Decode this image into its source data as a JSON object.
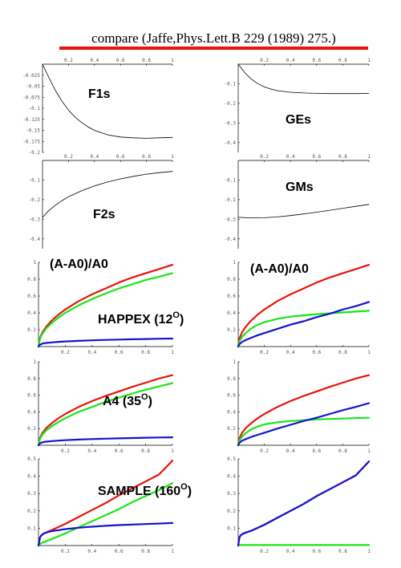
{
  "header": {
    "title": "compare (Jaffe,Phys.Lett.B 229 (1989) 275.)",
    "underline_color": "#e8140a"
  },
  "chart_data": [
    {
      "id": "F1s",
      "type": "line",
      "label": "F1s",
      "label_sup": "",
      "xlim": [
        0,
        1
      ],
      "ylim": [
        -0.2,
        0
      ],
      "xticks": [
        "0.2",
        "0.4",
        "0.6",
        "0.8",
        "1"
      ],
      "yticks": [
        "-0.025",
        "-0.05",
        "-0.075",
        "-0.1",
        "-0.125",
        "-0.15",
        "-0.175",
        "-0.2"
      ],
      "series": [
        {
          "color": "#000000",
          "x": [
            0,
            0.05,
            0.1,
            0.15,
            0.2,
            0.25,
            0.3,
            0.35,
            0.4,
            0.5,
            0.6,
            0.7,
            0.8,
            0.9,
            1.0
          ],
          "y": [
            0,
            -0.031,
            -0.06,
            -0.084,
            -0.104,
            -0.12,
            -0.132,
            -0.142,
            -0.15,
            -0.16,
            -0.165,
            -0.167,
            -0.168,
            -0.167,
            -0.166
          ]
        }
      ]
    },
    {
      "id": "GEs",
      "type": "line",
      "label": "GEs",
      "label_sup": "",
      "xlim": [
        0,
        1
      ],
      "ylim": [
        -0.45,
        0
      ],
      "xticks": [
        "0.2",
        "0.4",
        "0.6",
        "0.8",
        "1"
      ],
      "yticks": [
        "-0.1",
        "-0.2",
        "-0.3",
        "-0.4"
      ],
      "series": [
        {
          "color": "#000000",
          "x": [
            0,
            0.05,
            0.1,
            0.15,
            0.2,
            0.25,
            0.3,
            0.4,
            0.5,
            0.6,
            0.7,
            0.8,
            0.9,
            1.0
          ],
          "y": [
            0,
            -0.043,
            -0.076,
            -0.099,
            -0.116,
            -0.127,
            -0.135,
            -0.143,
            -0.147,
            -0.149,
            -0.15,
            -0.15,
            -0.15,
            -0.149
          ]
        }
      ]
    },
    {
      "id": "F2s",
      "type": "line",
      "label": "F2s",
      "label_sup": "",
      "xlim": [
        0,
        1
      ],
      "ylim": [
        -0.45,
        0
      ],
      "xticks": [
        "0.2",
        "0.4",
        "0.6",
        "0.8",
        "1"
      ],
      "yticks": [
        "-0.1",
        "-0.2",
        "-0.3",
        "-0.4"
      ],
      "series": [
        {
          "color": "#000000",
          "x": [
            0,
            0.05,
            0.1,
            0.15,
            0.2,
            0.3,
            0.4,
            0.5,
            0.6,
            0.7,
            0.8,
            0.9,
            1.0
          ],
          "y": [
            -0.29,
            -0.255,
            -0.228,
            -0.205,
            -0.185,
            -0.155,
            -0.13,
            -0.11,
            -0.094,
            -0.081,
            -0.07,
            -0.062,
            -0.056
          ]
        }
      ]
    },
    {
      "id": "GMs",
      "type": "line",
      "label": "GMs",
      "label_sup": "",
      "xlim": [
        0,
        1
      ],
      "ylim": [
        -0.45,
        0
      ],
      "xticks": [
        "0.2",
        "0.4",
        "0.6",
        "0.8",
        "1"
      ],
      "yticks": [
        "-0.1",
        "-0.2",
        "-0.3",
        "-0.4"
      ],
      "series": [
        {
          "color": "#000000",
          "x": [
            0,
            0.1,
            0.2,
            0.3,
            0.4,
            0.5,
            0.6,
            0.7,
            0.8,
            0.9,
            1.0
          ],
          "y": [
            -0.29,
            -0.293,
            -0.292,
            -0.288,
            -0.281,
            -0.273,
            -0.264,
            -0.254,
            -0.244,
            -0.234,
            -0.224
          ]
        }
      ]
    },
    {
      "id": "HAPPEX-L",
      "type": "line",
      "label": "HAPPEX (12",
      "label_sup": "O",
      "annotation": "(A-A0)/A0",
      "xlim": [
        0,
        1
      ],
      "ylim": [
        0,
        1
      ],
      "xticks": [
        "0.2",
        "0.4",
        "0.6",
        "0.8",
        "1"
      ],
      "yticks": [
        "0.2",
        "0.4",
        "0.6",
        "0.8",
        "1"
      ],
      "series": [
        {
          "color": "#e8140a",
          "x": [
            0,
            0.01,
            0.03,
            0.06,
            0.1,
            0.15,
            0.2,
            0.3,
            0.4,
            0.5,
            0.6,
            0.7,
            0.8,
            0.9,
            1.0
          ],
          "y": [
            0,
            0.098,
            0.17,
            0.24,
            0.31,
            0.38,
            0.44,
            0.54,
            0.62,
            0.69,
            0.76,
            0.82,
            0.87,
            0.92,
            0.97
          ]
        },
        {
          "color": "#19e619",
          "x": [
            0,
            0.01,
            0.03,
            0.06,
            0.1,
            0.15,
            0.2,
            0.3,
            0.4,
            0.5,
            0.6,
            0.7,
            0.8,
            0.9,
            1.0
          ],
          "y": [
            0,
            0.089,
            0.154,
            0.22,
            0.28,
            0.345,
            0.4,
            0.49,
            0.565,
            0.63,
            0.69,
            0.74,
            0.79,
            0.83,
            0.87
          ]
        },
        {
          "color": "#1414d2",
          "x": [
            0,
            0.01,
            0.03,
            0.05,
            0.1,
            0.15,
            0.2,
            0.3,
            0.4,
            0.5,
            0.6,
            0.7,
            0.8,
            0.9,
            1.0
          ],
          "y": [
            0,
            0.022,
            0.036,
            0.042,
            0.05,
            0.056,
            0.061,
            0.068,
            0.074,
            0.079,
            0.083,
            0.087,
            0.09,
            0.093,
            0.095
          ]
        }
      ]
    },
    {
      "id": "HAPPEX-R",
      "type": "line",
      "label": "",
      "label_sup": "",
      "annotation": "(A-A0)/A0",
      "xlim": [
        0,
        1
      ],
      "ylim": [
        0,
        1
      ],
      "xticks": [
        "0.2",
        "0.4",
        "0.6",
        "0.8",
        "1"
      ],
      "yticks": [
        "0.2",
        "0.4",
        "0.6",
        "0.8",
        "1"
      ],
      "series": [
        {
          "color": "#e8140a",
          "x": [
            0,
            0.01,
            0.03,
            0.06,
            0.1,
            0.15,
            0.2,
            0.3,
            0.4,
            0.5,
            0.6,
            0.7,
            0.8,
            0.9,
            1.0
          ],
          "y": [
            0,
            0.098,
            0.17,
            0.24,
            0.31,
            0.38,
            0.44,
            0.54,
            0.62,
            0.69,
            0.76,
            0.82,
            0.87,
            0.92,
            0.97
          ]
        },
        {
          "color": "#19e619",
          "x": [
            0,
            0.01,
            0.03,
            0.06,
            0.1,
            0.15,
            0.2,
            0.3,
            0.4,
            0.5,
            0.6,
            0.7,
            0.8,
            0.9,
            1.0
          ],
          "y": [
            0,
            0.065,
            0.115,
            0.165,
            0.215,
            0.26,
            0.29,
            0.33,
            0.355,
            0.37,
            0.385,
            0.395,
            0.405,
            0.415,
            0.425
          ]
        },
        {
          "color": "#1414d2",
          "x": [
            0,
            0.01,
            0.03,
            0.06,
            0.1,
            0.15,
            0.2,
            0.3,
            0.4,
            0.5,
            0.6,
            0.7,
            0.8,
            0.9,
            1.0
          ],
          "y": [
            0,
            0.03,
            0.055,
            0.08,
            0.105,
            0.135,
            0.16,
            0.21,
            0.26,
            0.3,
            0.35,
            0.39,
            0.44,
            0.48,
            0.53
          ]
        }
      ]
    },
    {
      "id": "A4-L",
      "type": "line",
      "label": "A4 (35",
      "label_sup": "O",
      "annotation": "",
      "xlim": [
        0,
        1
      ],
      "ylim": [
        0,
        1
      ],
      "xticks": [
        "0.2",
        "0.4",
        "0.6",
        "0.8",
        "1"
      ],
      "yticks": [
        "0.2",
        "0.4",
        "0.6",
        "0.8",
        "1"
      ],
      "series": [
        {
          "color": "#e8140a",
          "x": [
            0,
            0.01,
            0.03,
            0.06,
            0.1,
            0.15,
            0.2,
            0.3,
            0.4,
            0.5,
            0.6,
            0.7,
            0.8,
            0.9,
            1.0
          ],
          "y": [
            0,
            0.085,
            0.15,
            0.21,
            0.265,
            0.325,
            0.375,
            0.46,
            0.53,
            0.59,
            0.645,
            0.7,
            0.75,
            0.8,
            0.84
          ]
        },
        {
          "color": "#19e619",
          "x": [
            0,
            0.01,
            0.03,
            0.06,
            0.1,
            0.15,
            0.2,
            0.3,
            0.4,
            0.5,
            0.6,
            0.7,
            0.8,
            0.9,
            1.0
          ],
          "y": [
            0,
            0.075,
            0.13,
            0.18,
            0.23,
            0.28,
            0.325,
            0.4,
            0.46,
            0.52,
            0.57,
            0.62,
            0.665,
            0.705,
            0.745
          ]
        },
        {
          "color": "#1414d2",
          "x": [
            0,
            0.01,
            0.03,
            0.05,
            0.1,
            0.15,
            0.2,
            0.3,
            0.4,
            0.5,
            0.6,
            0.7,
            0.8,
            0.9,
            1.0
          ],
          "y": [
            0,
            0.022,
            0.036,
            0.042,
            0.05,
            0.056,
            0.061,
            0.068,
            0.074,
            0.079,
            0.083,
            0.087,
            0.09,
            0.093,
            0.095
          ]
        }
      ]
    },
    {
      "id": "A4-R",
      "type": "line",
      "label": "",
      "label_sup": "",
      "annotation": "",
      "xlim": [
        0,
        1
      ],
      "ylim": [
        0,
        1
      ],
      "xticks": [
        "0.2",
        "0.4",
        "0.6",
        "0.8",
        "1"
      ],
      "yticks": [
        "0.2",
        "0.4",
        "0.6",
        "0.8",
        "1"
      ],
      "series": [
        {
          "color": "#e8140a",
          "x": [
            0,
            0.01,
            0.03,
            0.06,
            0.1,
            0.15,
            0.2,
            0.3,
            0.4,
            0.5,
            0.6,
            0.7,
            0.8,
            0.9,
            1.0
          ],
          "y": [
            0,
            0.085,
            0.15,
            0.21,
            0.265,
            0.325,
            0.375,
            0.46,
            0.53,
            0.59,
            0.645,
            0.7,
            0.75,
            0.8,
            0.84
          ]
        },
        {
          "color": "#19e619",
          "x": [
            0,
            0.01,
            0.03,
            0.06,
            0.1,
            0.15,
            0.2,
            0.3,
            0.4,
            0.5,
            0.6,
            0.7,
            0.8,
            0.9,
            1.0
          ],
          "y": [
            0,
            0.06,
            0.105,
            0.15,
            0.19,
            0.225,
            0.25,
            0.275,
            0.29,
            0.3,
            0.31,
            0.315,
            0.32,
            0.325,
            0.33
          ]
        },
        {
          "color": "#1414d2",
          "x": [
            0,
            0.01,
            0.03,
            0.06,
            0.1,
            0.15,
            0.2,
            0.3,
            0.4,
            0.5,
            0.6,
            0.7,
            0.8,
            0.9,
            1.0
          ],
          "y": [
            0,
            0.03,
            0.055,
            0.075,
            0.1,
            0.125,
            0.15,
            0.2,
            0.245,
            0.29,
            0.33,
            0.375,
            0.42,
            0.46,
            0.505
          ]
        }
      ]
    },
    {
      "id": "SAMPLE-L",
      "type": "line",
      "label": "SAMPLE (160",
      "label_sup": "O",
      "annotation": "",
      "xlim": [
        0,
        1
      ],
      "ylim": [
        0,
        0.5
      ],
      "xticks": [
        "0.2",
        "0.4",
        "0.6",
        "0.8",
        "1"
      ],
      "yticks": [
        "0.1",
        "0.2",
        "0.3",
        "0.4",
        "0.5"
      ],
      "series": [
        {
          "color": "#e8140a",
          "x": [
            0,
            0.01,
            0.02,
            0.04,
            0.07,
            0.1,
            0.2,
            0.3,
            0.4,
            0.5,
            0.6,
            0.7,
            0.8,
            0.9,
            1.0
          ],
          "y": [
            0,
            0.045,
            0.058,
            0.07,
            0.08,
            0.09,
            0.125,
            0.165,
            0.205,
            0.245,
            0.29,
            0.33,
            0.37,
            0.41,
            0.49
          ]
        },
        {
          "color": "#19e619",
          "x": [
            0,
            0.01,
            0.02,
            0.04,
            0.1,
            0.2,
            0.3,
            0.4,
            0.5,
            0.6,
            0.7,
            0.8,
            0.9,
            1.0
          ],
          "y": [
            0,
            0.007,
            0.014,
            0.02,
            0.038,
            0.07,
            0.105,
            0.14,
            0.175,
            0.21,
            0.25,
            0.285,
            0.32,
            0.36
          ]
        },
        {
          "color": "#1414d2",
          "x": [
            0,
            0.01,
            0.02,
            0.04,
            0.07,
            0.1,
            0.2,
            0.3,
            0.4,
            0.5,
            0.6,
            0.7,
            0.8,
            0.9,
            1.0
          ],
          "y": [
            0,
            0.045,
            0.058,
            0.07,
            0.078,
            0.083,
            0.095,
            0.103,
            0.109,
            0.114,
            0.118,
            0.121,
            0.124,
            0.127,
            0.13
          ]
        }
      ]
    },
    {
      "id": "SAMPLE-R",
      "type": "line",
      "label": "",
      "label_sup": "",
      "annotation": "",
      "xlim": [
        0,
        1
      ],
      "ylim": [
        0,
        0.5
      ],
      "xticks": [
        "0.2",
        "0.4",
        "0.6",
        "0.8",
        "1"
      ],
      "yticks": [
        "0.1",
        "0.2",
        "0.3",
        "0.4",
        "0.5"
      ],
      "series": [
        {
          "color": "#19e619",
          "x": [
            0,
            1.0
          ],
          "y": [
            0.003,
            0.003
          ]
        },
        {
          "color": "#e8140a",
          "x": [
            0,
            0.01,
            0.02,
            0.04,
            0.07,
            0.1,
            0.2,
            0.3,
            0.4,
            0.5,
            0.6,
            0.7,
            0.8,
            0.9,
            1.0
          ],
          "y": [
            0,
            0.048,
            0.06,
            0.07,
            0.078,
            0.085,
            0.12,
            0.16,
            0.2,
            0.24,
            0.285,
            0.325,
            0.365,
            0.405,
            0.485
          ]
        },
        {
          "color": "#1414d2",
          "x": [
            0,
            0.01,
            0.02,
            0.04,
            0.07,
            0.1,
            0.2,
            0.3,
            0.4,
            0.5,
            0.6,
            0.7,
            0.8,
            0.9,
            1.0
          ],
          "y": [
            0,
            0.048,
            0.06,
            0.07,
            0.078,
            0.085,
            0.12,
            0.16,
            0.2,
            0.24,
            0.285,
            0.325,
            0.365,
            0.405,
            0.485
          ]
        }
      ]
    }
  ]
}
